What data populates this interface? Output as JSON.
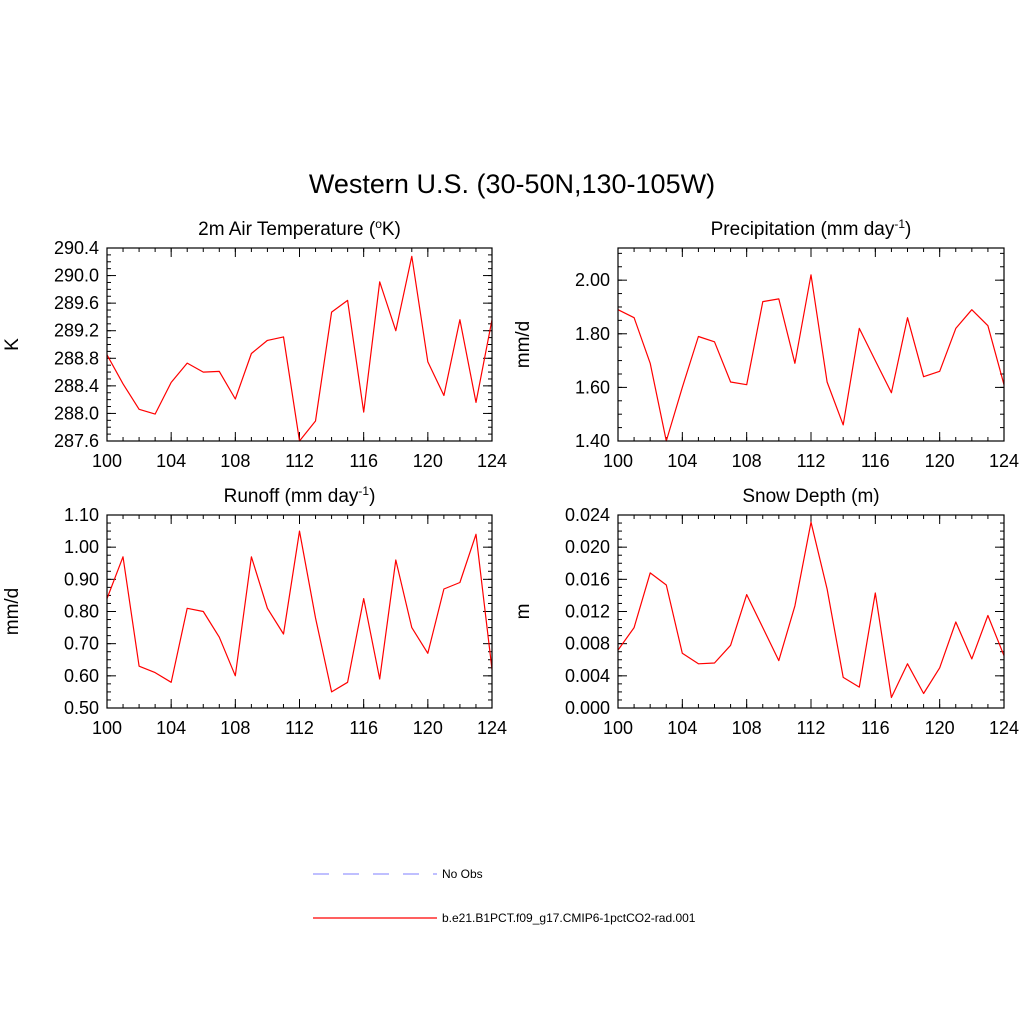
{
  "figure": {
    "title": "Western U.S. (30-50N,130-105W)"
  },
  "chart_data": [
    {
      "type": "line",
      "title": "2m Air Temperature",
      "title_super_prefix": "o",
      "title_main": "2m Air Temperature (",
      "title_after": "K)",
      "title_super": "o",
      "ylabel": "K",
      "xlabel": "",
      "xlim": [
        100,
        124
      ],
      "ylim": [
        287.6,
        290.4
      ],
      "xticks": [
        "100",
        "104",
        "108",
        "112",
        "116",
        "120",
        "124"
      ],
      "yticks": [
        "287.6",
        "288.0",
        "288.4",
        "288.8",
        "289.2",
        "289.6",
        "290.0",
        "290.4"
      ],
      "x": [
        100,
        101,
        102,
        103,
        104,
        105,
        106,
        107,
        108,
        109,
        110,
        111,
        112,
        113,
        114,
        115,
        116,
        117,
        118,
        119,
        120,
        121,
        122,
        123,
        124
      ],
      "series": [
        {
          "name": "b.e21.B1PCT.f09_g17.CMIP6-1pctCO2-rad.001",
          "values": [
            288.85,
            288.43,
            288.06,
            287.99,
            288.45,
            288.73,
            288.6,
            288.61,
            288.21,
            288.87,
            289.06,
            289.11,
            287.6,
            287.89,
            289.47,
            289.64,
            288.02,
            289.91,
            289.2,
            290.28,
            288.75,
            288.26,
            289.36,
            288.16,
            289.36
          ]
        }
      ]
    },
    {
      "type": "line",
      "title_main": "Precipitation (mm day",
      "title_super": "-1",
      "title_after": ")",
      "ylabel": "mm/d",
      "xlabel": "",
      "xlim": [
        100,
        124
      ],
      "ylim": [
        1.4,
        2.12
      ],
      "xticks": [
        "100",
        "104",
        "108",
        "112",
        "116",
        "120",
        "124"
      ],
      "yticks": [
        "1.40",
        "1.60",
        "1.80",
        "2.00"
      ],
      "x": [
        100,
        101,
        102,
        103,
        104,
        105,
        106,
        107,
        108,
        109,
        110,
        111,
        112,
        113,
        114,
        115,
        116,
        117,
        118,
        119,
        120,
        121,
        122,
        123,
        124
      ],
      "series": [
        {
          "name": "b.e21.B1PCT.f09_g17.CMIP6-1pctCO2-rad.001",
          "values": [
            1.89,
            1.86,
            1.69,
            1.4,
            1.6,
            1.79,
            1.77,
            1.62,
            1.61,
            1.92,
            1.93,
            1.69,
            2.02,
            1.62,
            1.46,
            1.82,
            1.7,
            1.58,
            1.86,
            1.64,
            1.66,
            1.82,
            1.89,
            1.83,
            1.61
          ]
        }
      ]
    },
    {
      "type": "line",
      "title_main": "Runoff (mm day",
      "title_super": "-1",
      "title_after": ")",
      "ylabel": "mm/d",
      "xlabel": "",
      "xlim": [
        100,
        124
      ],
      "ylim": [
        0.5,
        1.1
      ],
      "xticks": [
        "100",
        "104",
        "108",
        "112",
        "116",
        "120",
        "124"
      ],
      "yticks": [
        "0.50",
        "0.60",
        "0.70",
        "0.80",
        "0.90",
        "1.00",
        "1.10"
      ],
      "x": [
        100,
        101,
        102,
        103,
        104,
        105,
        106,
        107,
        108,
        109,
        110,
        111,
        112,
        113,
        114,
        115,
        116,
        117,
        118,
        119,
        120,
        121,
        122,
        123,
        124
      ],
      "series": [
        {
          "name": "b.e21.B1PCT.f09_g17.CMIP6-1pctCO2-rad.001",
          "values": [
            0.84,
            0.97,
            0.63,
            0.61,
            0.58,
            0.81,
            0.8,
            0.72,
            0.6,
            0.97,
            0.81,
            0.73,
            1.05,
            0.78,
            0.55,
            0.58,
            0.84,
            0.59,
            0.96,
            0.75,
            0.67,
            0.87,
            0.89,
            1.04,
            0.62
          ]
        }
      ]
    },
    {
      "type": "line",
      "title_main": "Snow Depth (m)",
      "title_super": "",
      "title_after": "",
      "ylabel": "m",
      "xlabel": "",
      "xlim": [
        100,
        124
      ],
      "ylim": [
        0.0,
        0.024
      ],
      "xticks": [
        "100",
        "104",
        "108",
        "112",
        "116",
        "120",
        "124"
      ],
      "yticks": [
        "0.000",
        "0.004",
        "0.008",
        "0.012",
        "0.016",
        "0.020",
        "0.024"
      ],
      "x": [
        100,
        101,
        102,
        103,
        104,
        105,
        106,
        107,
        108,
        109,
        110,
        111,
        112,
        113,
        114,
        115,
        116,
        117,
        118,
        119,
        120,
        121,
        122,
        123,
        124
      ],
      "series": [
        {
          "name": "b.e21.B1PCT.f09_g17.CMIP6-1pctCO2-rad.001",
          "values": [
            0.0072,
            0.01,
            0.0168,
            0.0153,
            0.0068,
            0.0055,
            0.0056,
            0.0078,
            0.0141,
            0.01,
            0.0059,
            0.0127,
            0.0231,
            0.0148,
            0.0038,
            0.0026,
            0.0143,
            0.0013,
            0.0055,
            0.0018,
            0.005,
            0.0107,
            0.0061,
            0.0115,
            0.0065
          ]
        }
      ]
    }
  ],
  "legend": {
    "placement": "bottom-center",
    "items": [
      {
        "label": "No Obs",
        "color": "#9999ff",
        "style": "dashed"
      },
      {
        "label": "b.e21.B1PCT.f09_g17.CMIP6-1pctCO2-rad.001",
        "color": "#ff0000",
        "style": "solid"
      }
    ]
  },
  "colors": {
    "line": "#ff0000",
    "axes": "#000000",
    "obs": "#9999ff"
  }
}
